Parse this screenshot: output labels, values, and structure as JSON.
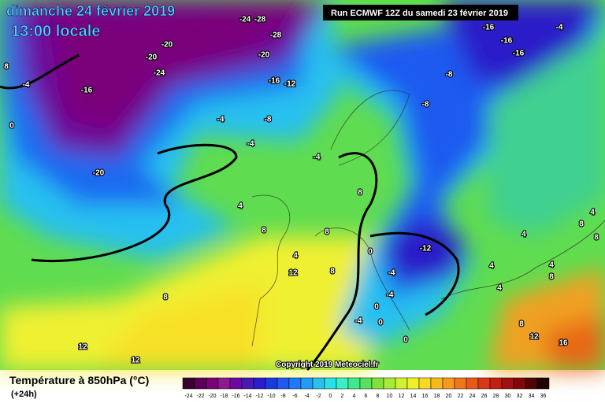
{
  "header": {
    "date": "dimanche 24 février 2019",
    "time": "13:00 locale",
    "run": "Run ECMWF 12Z du samedi 23 février 2019"
  },
  "copyright": "Copyright 2019 Meteociel.fr",
  "footer": {
    "title": "Température à 850hPa (°C)",
    "lead": "(+24h)"
  },
  "colorbar": {
    "ticks": [
      -24,
      -22,
      -20,
      -18,
      -16,
      -14,
      -12,
      -10,
      -8,
      -6,
      -4,
      -2,
      0,
      2,
      4,
      6,
      8,
      10,
      12,
      14,
      16,
      18,
      20,
      22,
      24,
      26,
      28,
      30,
      32,
      34,
      36
    ],
    "colors": [
      "#3a0030",
      "#5a005a",
      "#7a007a",
      "#8e1a8e",
      "#6a0aa0",
      "#4a18b0",
      "#2a1ec8",
      "#1a3ae0",
      "#1e5af0",
      "#1e7af8",
      "#1e9cf8",
      "#28c0f0",
      "#2ae0e8",
      "#38f0c0",
      "#40e890",
      "#58e060",
      "#80e040",
      "#a8e838",
      "#d0f030",
      "#f0f028",
      "#f8d820",
      "#f8b818",
      "#f89818",
      "#f07818",
      "#e85818",
      "#d83818",
      "#c02010",
      "#a01010",
      "#800808",
      "#500404",
      "#200000"
    ]
  },
  "contour_labels": [
    -24,
    -28,
    -28,
    -20,
    -20,
    -24,
    -20,
    -16,
    -12,
    -16,
    -4,
    8,
    0,
    -20,
    -4,
    -8,
    -4,
    -4,
    -8,
    -8,
    -16,
    -16,
    -16,
    -4,
    4,
    8,
    8,
    8,
    0,
    -12,
    4,
    12,
    8,
    8,
    -4,
    -4,
    0,
    -4,
    0,
    0,
    12,
    12,
    4,
    4,
    4,
    8,
    8,
    12,
    16,
    8,
    4,
    4,
    8
  ]
}
